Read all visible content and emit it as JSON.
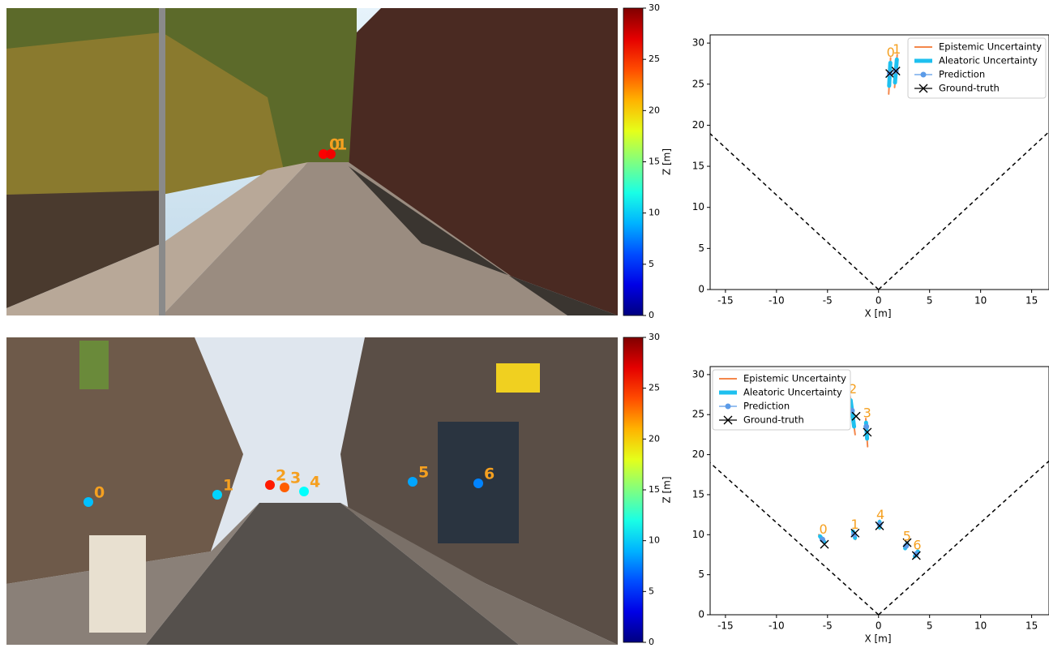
{
  "chart_data": [
    {
      "type": "colorbar",
      "label": "Z [m]",
      "colormap": "jet",
      "ylim": [
        0,
        30
      ],
      "yticks": [
        0,
        5,
        10,
        15,
        20,
        25,
        30
      ]
    },
    {
      "type": "scatter",
      "xlabel": "X [m]",
      "xlim": [
        -16.5,
        16.7
      ],
      "ylim": [
        0,
        31
      ],
      "xticks": [
        -15,
        -10,
        -5,
        0,
        5,
        10,
        15
      ],
      "yticks": [
        0,
        5,
        10,
        15,
        20,
        25,
        30
      ],
      "legend": "upper right",
      "labels": [
        "0",
        "1"
      ],
      "series": [
        {
          "name": "Epistemic Uncertainty",
          "color": "#f4874b",
          "low": [
            23.8,
            24.6
          ],
          "high": [
            28.2,
            28.6
          ]
        },
        {
          "name": "Aleatoric Uncertainty",
          "color": "#1ec0ef",
          "low": [
            24.8,
            25.2
          ],
          "high": [
            27.6,
            28.0
          ]
        },
        {
          "name": "Prediction",
          "color": "#5b9be8",
          "x": [
            1.1,
            1.7
          ],
          "values": [
            26.3,
            26.6
          ]
        },
        {
          "name": "Ground-truth",
          "color": "#000000",
          "x": [
            1.1,
            1.7
          ],
          "values": [
            26.3,
            26.6
          ]
        }
      ]
    },
    {
      "type": "colorbar",
      "label": "Z [m]",
      "colormap": "jet",
      "ylim": [
        0,
        30
      ],
      "yticks": [
        0,
        5,
        10,
        15,
        20,
        25,
        30
      ]
    },
    {
      "type": "scatter",
      "xlabel": "X [m]",
      "xlim": [
        -16.5,
        16.7
      ],
      "ylim": [
        0,
        31
      ],
      "xticks": [
        -15,
        -10,
        -5,
        0,
        5,
        10,
        15
      ],
      "yticks": [
        0,
        5,
        10,
        15,
        20,
        25,
        30
      ],
      "legend": "upper left",
      "labels": [
        "0",
        "1",
        "2",
        "3",
        "4",
        "5",
        "6"
      ],
      "series": [
        {
          "name": "Epistemic Uncertainty",
          "color": "#f4874b",
          "low": [
            9.0,
            9.4,
            22.5,
            21.0,
            10.7,
            8.2,
            7.2
          ],
          "high": [
            10.0,
            10.6,
            27.5,
            24.5,
            11.8,
            9.1,
            8.0
          ]
        },
        {
          "name": "Aleatoric Uncertainty",
          "color": "#1ec0ef",
          "low": [
            9.1,
            9.6,
            23.5,
            22.0,
            10.9,
            8.3,
            7.3
          ],
          "high": [
            9.8,
            10.4,
            26.8,
            24.0,
            11.6,
            8.9,
            7.9
          ]
        },
        {
          "name": "Prediction",
          "color": "#5b9be8",
          "x": [
            -5.5,
            -2.4,
            -2.6,
            -1.2,
            0.1,
            2.7,
            3.7
          ],
          "values": [
            9.4,
            10.0,
            25.5,
            23.5,
            11.3,
            8.6,
            7.6
          ]
        },
        {
          "name": "Ground-truth",
          "color": "#000000",
          "x": [
            -5.3,
            -2.3,
            -2.2,
            -1.1,
            0.1,
            2.8,
            3.7
          ],
          "values": [
            8.8,
            10.2,
            24.8,
            22.8,
            11.1,
            9.0,
            7.4
          ]
        }
      ]
    }
  ]
}
